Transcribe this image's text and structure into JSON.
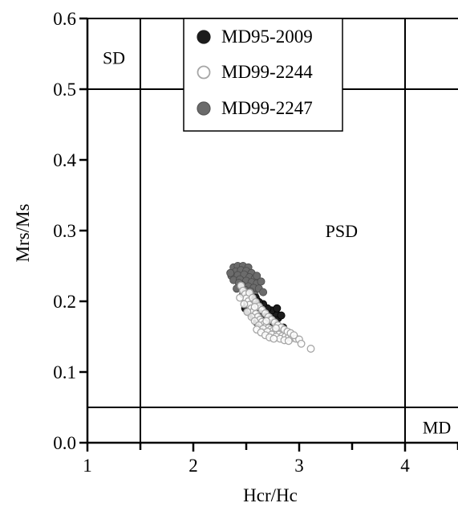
{
  "chart_data": {
    "type": "scatter",
    "title": "",
    "xlabel": "Hcr/Hc",
    "ylabel": "Mrs/Ms",
    "xlim": [
      1,
      4.5
    ],
    "ylim": [
      0,
      0.6
    ],
    "x_ticks": [
      1,
      1.5,
      2,
      2.5,
      3,
      3.5,
      4,
      4.5
    ],
    "x_tick_labels": [
      "1",
      "",
      "2",
      "",
      "3",
      "",
      "4",
      ""
    ],
    "y_ticks": [
      0,
      0.1,
      0.2,
      0.3,
      0.4,
      0.5,
      0.6
    ],
    "y_tick_labels": [
      "0.0",
      "0.1",
      "0.2",
      "0.3",
      "0.4",
      "0.5",
      "0.6"
    ],
    "grid": false,
    "legend_position": "top-center",
    "boundaries": {
      "vertical": [
        1.5,
        4.0
      ],
      "horizontal": [
        0.05,
        0.5
      ]
    },
    "regions": [
      {
        "label": "SD",
        "x": 1.25,
        "y": 0.545
      },
      {
        "label": "PSD",
        "x": 3.4,
        "y": 0.3
      },
      {
        "label": "MD",
        "x": 4.3,
        "y": 0.022
      }
    ],
    "series": [
      {
        "name": "MD99-2247",
        "color": "#6b6b6b",
        "fill": true,
        "points": [
          [
            2.38,
            0.248
          ],
          [
            2.42,
            0.25
          ],
          [
            2.47,
            0.25
          ],
          [
            2.52,
            0.248
          ],
          [
            2.4,
            0.242
          ],
          [
            2.45,
            0.244
          ],
          [
            2.5,
            0.243
          ],
          [
            2.55,
            0.24
          ],
          [
            2.36,
            0.236
          ],
          [
            2.42,
            0.237
          ],
          [
            2.48,
            0.238
          ],
          [
            2.53,
            0.234
          ],
          [
            2.58,
            0.232
          ],
          [
            2.38,
            0.23
          ],
          [
            2.44,
            0.231
          ],
          [
            2.5,
            0.229
          ],
          [
            2.55,
            0.227
          ],
          [
            2.6,
            0.225
          ],
          [
            2.46,
            0.223
          ],
          [
            2.52,
            0.221
          ],
          [
            2.57,
            0.219
          ],
          [
            2.62,
            0.218
          ],
          [
            2.66,
            0.213
          ],
          [
            2.49,
            0.216
          ],
          [
            2.54,
            0.214
          ],
          [
            2.43,
            0.226
          ],
          [
            2.35,
            0.24
          ],
          [
            2.6,
            0.236
          ],
          [
            2.64,
            0.228
          ],
          [
            2.47,
            0.21
          ],
          [
            2.58,
            0.209
          ],
          [
            2.41,
            0.218
          ]
        ]
      },
      {
        "name": "MD95-2009",
        "color": "#1c1c1c",
        "fill": true,
        "points": [
          [
            2.49,
            0.19
          ],
          [
            2.52,
            0.185
          ],
          [
            2.55,
            0.182
          ],
          [
            2.57,
            0.178
          ],
          [
            2.6,
            0.176
          ],
          [
            2.63,
            0.173
          ],
          [
            2.66,
            0.17
          ],
          [
            2.54,
            0.192
          ],
          [
            2.58,
            0.188
          ],
          [
            2.62,
            0.184
          ],
          [
            2.65,
            0.181
          ],
          [
            2.69,
            0.178
          ],
          [
            2.73,
            0.175
          ],
          [
            2.76,
            0.172
          ],
          [
            2.8,
            0.176
          ],
          [
            2.78,
            0.183
          ],
          [
            2.74,
            0.187
          ],
          [
            2.7,
            0.19
          ],
          [
            2.66,
            0.196
          ],
          [
            2.62,
            0.199
          ],
          [
            2.59,
            0.205
          ],
          [
            2.56,
            0.2
          ],
          [
            2.51,
            0.197
          ],
          [
            2.79,
            0.19
          ],
          [
            2.83,
            0.18
          ],
          [
            2.68,
            0.166
          ],
          [
            2.72,
            0.163
          ],
          [
            2.76,
            0.16
          ],
          [
            2.81,
            0.158
          ],
          [
            2.85,
            0.163
          ],
          [
            2.6,
            0.17
          ],
          [
            2.64,
            0.164
          ]
        ]
      },
      {
        "name": "MD99-2244",
        "color": "#a6a6a6",
        "fill": false,
        "points": [
          [
            2.45,
            0.222
          ],
          [
            2.47,
            0.215
          ],
          [
            2.49,
            0.21
          ],
          [
            2.5,
            0.204
          ],
          [
            2.52,
            0.2
          ],
          [
            2.53,
            0.195
          ],
          [
            2.55,
            0.19
          ],
          [
            2.57,
            0.186
          ],
          [
            2.59,
            0.182
          ],
          [
            2.61,
            0.178
          ],
          [
            2.63,
            0.174
          ],
          [
            2.65,
            0.171
          ],
          [
            2.67,
            0.168
          ],
          [
            2.69,
            0.165
          ],
          [
            2.71,
            0.162
          ],
          [
            2.73,
            0.16
          ],
          [
            2.75,
            0.158
          ],
          [
            2.77,
            0.156
          ],
          [
            2.79,
            0.154
          ],
          [
            2.81,
            0.153
          ],
          [
            2.84,
            0.151
          ],
          [
            2.87,
            0.15
          ],
          [
            2.9,
            0.149
          ],
          [
            2.93,
            0.148
          ],
          [
            2.97,
            0.147
          ],
          [
            3.0,
            0.146
          ],
          [
            2.53,
            0.212
          ],
          [
            2.56,
            0.205
          ],
          [
            2.59,
            0.199
          ],
          [
            2.62,
            0.193
          ],
          [
            2.65,
            0.188
          ],
          [
            2.68,
            0.183
          ],
          [
            2.71,
            0.178
          ],
          [
            2.74,
            0.174
          ],
          [
            2.77,
            0.17
          ],
          [
            2.8,
            0.166
          ],
          [
            2.83,
            0.163
          ],
          [
            2.86,
            0.16
          ],
          [
            2.89,
            0.157
          ],
          [
            2.92,
            0.155
          ],
          [
            2.95,
            0.152
          ],
          [
            2.51,
            0.185
          ],
          [
            2.55,
            0.178
          ],
          [
            2.58,
            0.172
          ],
          [
            2.62,
            0.166
          ],
          [
            2.66,
            0.161
          ],
          [
            2.7,
            0.157
          ],
          [
            2.74,
            0.153
          ],
          [
            2.78,
            0.15
          ],
          [
            2.82,
            0.147
          ],
          [
            2.86,
            0.145
          ],
          [
            2.9,
            0.144
          ],
          [
            3.02,
            0.14
          ],
          [
            3.11,
            0.133
          ],
          [
            2.6,
            0.16
          ],
          [
            2.64,
            0.156
          ],
          [
            2.68,
            0.152
          ],
          [
            2.72,
            0.149
          ],
          [
            2.76,
            0.147
          ],
          [
            2.48,
            0.196
          ],
          [
            2.44,
            0.205
          ],
          [
            2.58,
            0.192
          ],
          [
            2.69,
            0.172
          ],
          [
            2.78,
            0.162
          ]
        ]
      }
    ]
  }
}
